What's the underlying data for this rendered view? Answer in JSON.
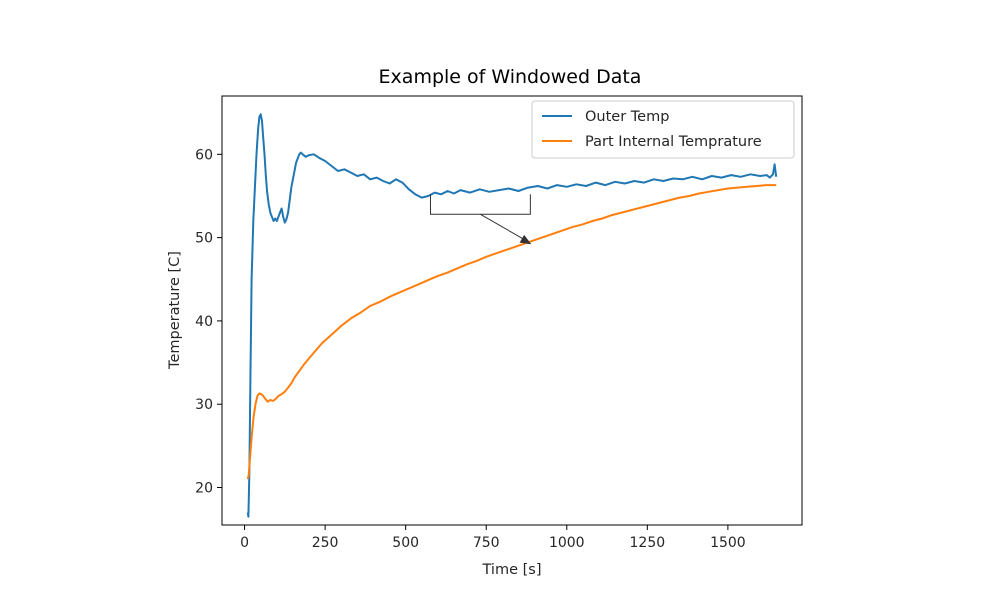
{
  "chart_data": {
    "type": "line",
    "title": "Example of Windowed Data",
    "xlabel": "Time [s]",
    "ylabel": "Temperature [C]",
    "xlim": [
      -70,
      1730
    ],
    "ylim": [
      15.5,
      67
    ],
    "xticks": [
      0,
      250,
      500,
      750,
      1000,
      1250,
      1500
    ],
    "yticks": [
      20,
      30,
      40,
      50,
      60
    ],
    "grid": false,
    "legend_position": "top-right",
    "annotation": {
      "type": "bracket-arrow",
      "bracket_x": [
        577,
        887
      ],
      "bracket_y_top": 55.2,
      "bracket_y_bottom": 52.8,
      "arrow_to": [
        890,
        49.2
      ]
    },
    "series": [
      {
        "name": "Outer Temp",
        "color": "#1f77b4",
        "x": [
          10,
          12,
          15,
          18,
          22,
          27,
          32,
          37,
          42,
          46,
          50,
          54,
          58,
          62,
          66,
          70,
          75,
          80,
          85,
          90,
          95,
          100,
          105,
          110,
          115,
          120,
          125,
          130,
          135,
          140,
          145,
          150,
          155,
          160,
          165,
          170,
          175,
          180,
          190,
          200,
          215,
          230,
          250,
          270,
          290,
          310,
          330,
          350,
          370,
          390,
          410,
          430,
          450,
          470,
          490,
          510,
          530,
          550,
          570,
          590,
          610,
          630,
          650,
          670,
          700,
          730,
          760,
          790,
          820,
          850,
          880,
          910,
          940,
          970,
          1000,
          1030,
          1060,
          1090,
          1120,
          1150,
          1180,
          1210,
          1240,
          1270,
          1300,
          1330,
          1360,
          1390,
          1420,
          1450,
          1480,
          1510,
          1540,
          1570,
          1600,
          1620,
          1630,
          1640,
          1645,
          1650
        ],
        "y": [
          17.0,
          16.5,
          22.0,
          33.0,
          45.0,
          52.0,
          56.0,
          60.0,
          63.0,
          64.5,
          64.8,
          64.0,
          62.0,
          60.0,
          57.5,
          55.5,
          54.0,
          53.0,
          52.5,
          52.0,
          52.3,
          52.0,
          52.5,
          53.0,
          53.5,
          52.5,
          51.8,
          52.2,
          53.0,
          54.5,
          56.0,
          57.0,
          58.0,
          59.0,
          59.5,
          60.0,
          60.2,
          60.0,
          59.7,
          59.9,
          60.0,
          59.6,
          59.2,
          58.6,
          58.0,
          58.2,
          57.8,
          57.4,
          57.6,
          57.0,
          57.2,
          56.8,
          56.5,
          57.0,
          56.6,
          55.8,
          55.2,
          54.8,
          55.0,
          55.4,
          55.2,
          55.6,
          55.3,
          55.7,
          55.4,
          55.8,
          55.5,
          55.7,
          55.9,
          55.6,
          56.0,
          56.2,
          55.9,
          56.3,
          56.1,
          56.4,
          56.2,
          56.6,
          56.3,
          56.7,
          56.5,
          56.8,
          56.6,
          57.0,
          56.8,
          57.1,
          57.0,
          57.3,
          57.0,
          57.4,
          57.2,
          57.5,
          57.3,
          57.6,
          57.4,
          57.5,
          57.2,
          57.6,
          58.8,
          57.3
        ]
      },
      {
        "name": "Part Internal Temprature",
        "color": "#ff7f0e",
        "x": [
          10,
          13,
          17,
          22,
          28,
          34,
          40,
          46,
          52,
          58,
          65,
          72,
          80,
          88,
          96,
          105,
          115,
          125,
          135,
          145,
          155,
          170,
          185,
          200,
          220,
          240,
          260,
          280,
          300,
          330,
          360,
          390,
          420,
          450,
          480,
          510,
          540,
          570,
          600,
          630,
          660,
          690,
          720,
          750,
          780,
          810,
          840,
          870,
          900,
          930,
          960,
          990,
          1020,
          1050,
          1080,
          1110,
          1140,
          1170,
          1200,
          1230,
          1260,
          1290,
          1320,
          1350,
          1380,
          1410,
          1440,
          1470,
          1500,
          1530,
          1560,
          1590,
          1620,
          1650
        ],
        "y": [
          21.0,
          21.5,
          23.5,
          26.0,
          28.5,
          30.0,
          31.0,
          31.3,
          31.2,
          31.0,
          30.6,
          30.3,
          30.5,
          30.4,
          30.6,
          31.0,
          31.2,
          31.5,
          32.0,
          32.5,
          33.2,
          34.0,
          34.8,
          35.5,
          36.4,
          37.3,
          38.0,
          38.7,
          39.4,
          40.3,
          41.0,
          41.8,
          42.3,
          42.9,
          43.4,
          43.9,
          44.4,
          44.9,
          45.4,
          45.8,
          46.3,
          46.8,
          47.2,
          47.7,
          48.1,
          48.5,
          48.9,
          49.3,
          49.7,
          50.1,
          50.5,
          50.9,
          51.3,
          51.6,
          52.0,
          52.3,
          52.7,
          53.0,
          53.3,
          53.6,
          53.9,
          54.2,
          54.5,
          54.8,
          55.0,
          55.3,
          55.5,
          55.7,
          55.9,
          56.0,
          56.1,
          56.2,
          56.3,
          56.3
        ]
      }
    ]
  }
}
